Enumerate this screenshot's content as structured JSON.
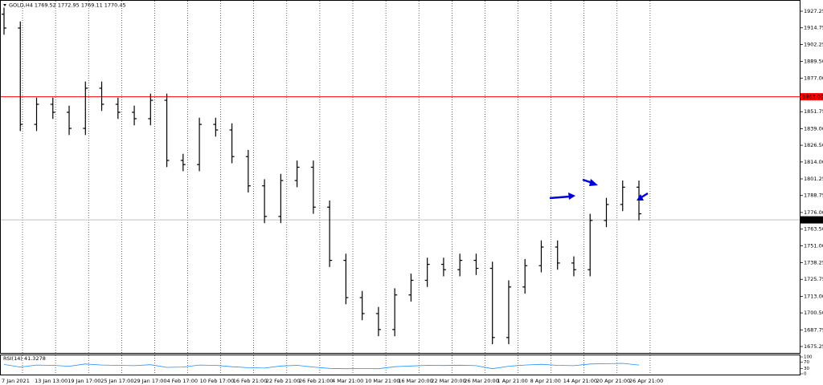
{
  "chart_data": [
    {
      "type": "ohlc",
      "title": "GOLD,H4 1769.52 1772.95 1769.11 1770.45",
      "color": "#000000",
      "xlabels": [
        "7 Jan 2021",
        "13 Jan 13:00",
        "19 Jan 17:00",
        "25 Jan 17:00",
        "29 Jan 17:00",
        "4 Feb 17:00",
        "10 Feb 17:00",
        "16 Feb 21:00",
        "22 Feb 21:00",
        "26 Feb 21:00",
        "4 Mar 21:00",
        "10 Mar 21:00",
        "16 Mar 20:00",
        "22 Mar 20:00",
        "26 Mar 20:00",
        "1 Apr 21:00",
        "8 Apr 21:00",
        "14 Apr 21:00",
        "20 Apr 21:00",
        "26 Apr 21:00"
      ],
      "open": [
        1925.0,
        1914.6,
        1842.2,
        1857.3,
        1851.3,
        1839.2,
        1869.4,
        1857.3,
        1851.3,
        1846.5,
        1860.3,
        1815.1,
        1812.0,
        1842.2,
        1838.0,
        1818.0,
        1796.0,
        1773.0,
        1800.0,
        1810.0,
        1780.0,
        1740.0,
        1712.0,
        1700.0,
        1688.0,
        1714.0,
        1725.0,
        1737.0,
        1733.0,
        1740.0,
        1734.0,
        1682.0,
        1720.0,
        1736.0,
        1750.0,
        1738.0,
        1733.0,
        1770.0,
        1782.0,
        1795.0
      ],
      "high": [
        1930.0,
        1919.6,
        1862.3,
        1862.3,
        1856.3,
        1874.4,
        1874.4,
        1862.3,
        1856.3,
        1865.3,
        1865.3,
        1820.1,
        1847.2,
        1847.2,
        1843.0,
        1823.0,
        1801.0,
        1805.0,
        1815.0,
        1815.0,
        1785.0,
        1745.0,
        1717.0,
        1705.0,
        1719.0,
        1730.0,
        1742.0,
        1742.0,
        1745.0,
        1745.0,
        1739.0,
        1725.0,
        1741.0,
        1755.0,
        1755.0,
        1743.0,
        1775.0,
        1787.0,
        1800.0,
        1800.0
      ],
      "low": [
        1909.6,
        1837.2,
        1837.2,
        1846.3,
        1834.2,
        1834.2,
        1852.3,
        1846.3,
        1841.5,
        1841.5,
        1810.1,
        1807.0,
        1807.0,
        1833.0,
        1813.0,
        1791.0,
        1768.0,
        1768.0,
        1795.0,
        1775.0,
        1735.0,
        1707.0,
        1695.0,
        1683.0,
        1683.0,
        1709.0,
        1720.0,
        1728.0,
        1728.0,
        1729.0,
        1677.0,
        1677.0,
        1715.0,
        1731.0,
        1733.0,
        1728.0,
        1728.0,
        1765.0,
        1777.0,
        1770.0
      ],
      "close": [
        1914.6,
        1842.2,
        1857.3,
        1851.3,
        1839.2,
        1869.4,
        1857.3,
        1851.3,
        1846.5,
        1860.3,
        1815.1,
        1812.0,
        1842.2,
        1838.0,
        1818.0,
        1796.0,
        1773.0,
        1800.0,
        1810.0,
        1780.0,
        1740.0,
        1712.0,
        1700.0,
        1688.0,
        1714.0,
        1725.0,
        1737.0,
        1733.0,
        1740.0,
        1734.0,
        1682.0,
        1720.0,
        1736.0,
        1750.0,
        1738.0,
        1733.0,
        1770.0,
        1782.0,
        1795.0,
        1775.0
      ],
      "ylim": [
        1670.43,
        1935.69
      ],
      "yticks": [
        {
          "value": 1927.25,
          "label": "1927.25"
        },
        {
          "value": 1914.75,
          "label": "1914.75"
        },
        {
          "value": 1902.25,
          "label": "1902.25"
        },
        {
          "value": 1889.5,
          "label": "1889.50"
        },
        {
          "value": 1877,
          "label": "1877.00"
        },
        {
          "value": 1851.75,
          "label": "1851.75"
        },
        {
          "value": 1839,
          "label": "1839.00"
        },
        {
          "value": 1826.5,
          "label": "1826.50"
        },
        {
          "value": 1814,
          "label": "1814.00"
        },
        {
          "value": 1801.25,
          "label": "1801.25"
        },
        {
          "value": 1788.75,
          "label": "1788.75"
        },
        {
          "value": 1776,
          "label": "1776.00"
        },
        {
          "value": 1763.5,
          "label": "1763.50"
        },
        {
          "value": 1751,
          "label": "1751.00"
        },
        {
          "value": 1738.25,
          "label": "1738.25"
        },
        {
          "value": 1725.75,
          "label": "1725.75"
        },
        {
          "value": 1713,
          "label": "1713.00"
        },
        {
          "value": 1700.5,
          "label": "1700.50"
        },
        {
          "value": 1687.75,
          "label": "1687.75"
        },
        {
          "value": 1675.25,
          "label": "1675.25"
        }
      ],
      "hlines": [
        {
          "value": 1863.0,
          "label": "1863.00",
          "color": "#ff0000"
        },
        {
          "value": 1770.45,
          "label": "1770.45",
          "color": "#c0c0c0"
        }
      ],
      "grid": true
    },
    {
      "type": "line",
      "title": "RSI(14) 41.3278",
      "color": "#1e90ff",
      "values": [
        55,
        40,
        52,
        50,
        45,
        58,
        52,
        50,
        48,
        54,
        38,
        40,
        52,
        50,
        42,
        36,
        34,
        46,
        50,
        40,
        32,
        30,
        31,
        30,
        42,
        46,
        50,
        49,
        51,
        48,
        30,
        45,
        52,
        56,
        50,
        48,
        58,
        60,
        62,
        52
      ],
      "ylim": [
        0,
        100
      ],
      "yticks": [
        100,
        70,
        30,
        0
      ]
    }
  ]
}
